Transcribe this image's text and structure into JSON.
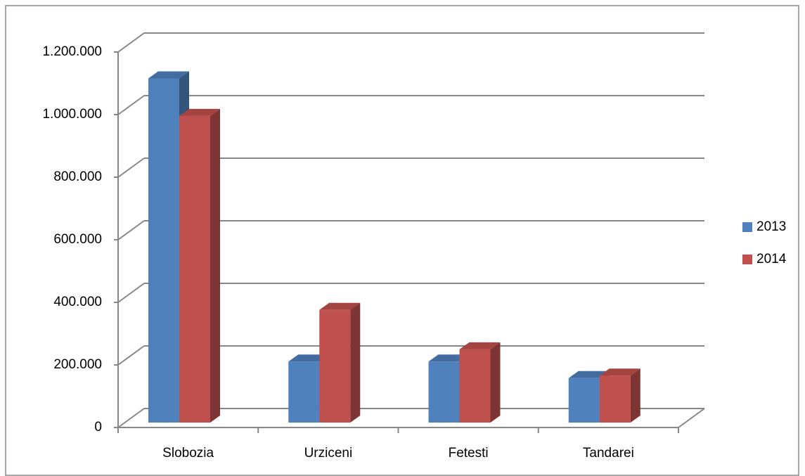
{
  "chart_data": {
    "type": "bar3d",
    "categories": [
      "Slobozia",
      "Urziceni",
      "Fetesti",
      "Tandarei"
    ],
    "series": [
      {
        "name": "2013",
        "color": "#4f81bd",
        "values": [
          1100000,
          195000,
          195000,
          142000
        ]
      },
      {
        "name": "2014",
        "color": "#c0504d",
        "values": [
          980000,
          360000,
          234000,
          150000
        ]
      }
    ],
    "ylim": [
      0,
      1200000
    ],
    "yticks": [
      0,
      {
        "value": 200000,
        "label": "200.000"
      },
      {
        "value": 400000,
        "label": "400.000"
      },
      {
        "value": 600000,
        "label": "600.000"
      },
      {
        "value": 800000,
        "label": "800.000"
      },
      {
        "value": 1000000,
        "label": "1.000.000"
      },
      {
        "value": 1200000,
        "label": "1.200.000"
      }
    ],
    "grid": true,
    "legend": "right"
  }
}
